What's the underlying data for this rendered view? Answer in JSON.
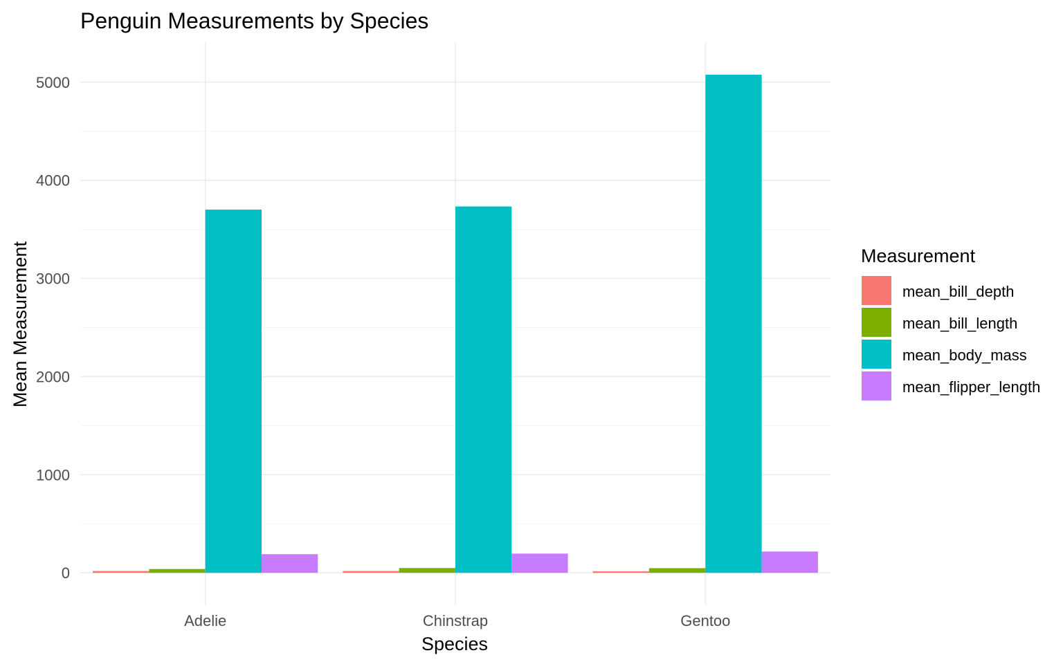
{
  "chart_data": {
    "type": "bar",
    "title": "Penguin Measurements by Species",
    "xlabel": "Species",
    "ylabel": "Mean Measurement",
    "categories": [
      "Adelie",
      "Chinstrap",
      "Gentoo"
    ],
    "ylim": [
      -330,
      5400
    ],
    "yticks": [
      0,
      1000,
      2000,
      3000,
      4000,
      5000
    ],
    "grid": true,
    "legend": {
      "title": "Measurement",
      "placement": "right"
    },
    "series": [
      {
        "name": "mean_bill_depth",
        "color": "#F8766D",
        "values": [
          18.3,
          18.4,
          15.0
        ]
      },
      {
        "name": "mean_bill_length",
        "color": "#7CAE00",
        "values": [
          38.8,
          48.8,
          47.5
        ]
      },
      {
        "name": "mean_body_mass",
        "color": "#00BFC4",
        "values": [
          3701,
          3733,
          5076
        ]
      },
      {
        "name": "mean_flipper_length",
        "color": "#C77CFF",
        "values": [
          190,
          196,
          217
        ]
      }
    ]
  }
}
